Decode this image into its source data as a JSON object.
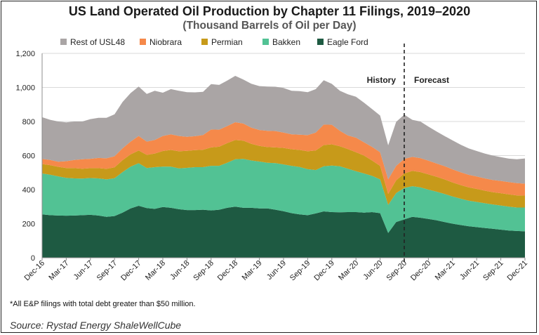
{
  "chart_data": {
    "type": "area",
    "title": "US Land Operated Oil Production by Chapter 11 Filings, 2019–2020",
    "subtitle": "(Thousand Barrels of Oil per Day)",
    "xlabel": "",
    "ylabel": "",
    "ylim": [
      0,
      1200
    ],
    "yticks": [
      0,
      200,
      400,
      600,
      800,
      1000,
      1200
    ],
    "ytick_labels": [
      "0",
      "200",
      "400",
      "600",
      "800",
      "1,000",
      "1,200"
    ],
    "stacked": true,
    "legend_position": "top",
    "x_tick_labels": [
      "Dec-16",
      "Mar-17",
      "Jun-17",
      "Sep-17",
      "Dec-17",
      "Mar-18",
      "Jun-18",
      "Sep-18",
      "Dec-18",
      "Mar-19",
      "Jun-19",
      "Sep-19",
      "Dec-19",
      "Mar-20",
      "Jun-20",
      "Sep-20",
      "Dec-20",
      "Mar-21",
      "Jun-21",
      "Sep-21",
      "Dec-21"
    ],
    "x_tick_month_index": [
      0,
      3,
      6,
      9,
      12,
      15,
      18,
      21,
      24,
      27,
      30,
      33,
      36,
      39,
      42,
      45,
      48,
      51,
      54,
      57,
      60
    ],
    "annotations": {
      "history": "History",
      "forecast": "Forecast",
      "divider_month_index": 45
    },
    "series": [
      {
        "name": "Eagle Ford",
        "color": "#1e5a42",
        "values": [
          255,
          250,
          248,
          247,
          248,
          250,
          252,
          248,
          240,
          245,
          265,
          290,
          305,
          292,
          287,
          298,
          293,
          285,
          280,
          280,
          282,
          278,
          282,
          293,
          300,
          293,
          293,
          290,
          290,
          282,
          273,
          262,
          255,
          250,
          260,
          272,
          268,
          267,
          268,
          268,
          265,
          268,
          262,
          145,
          210,
          225,
          240,
          235,
          228,
          220,
          210,
          200,
          192,
          185,
          180,
          175,
          170,
          165,
          160,
          157,
          155
        ]
      },
      {
        "name": "Bakken",
        "color": "#52c294",
        "values": [
          240,
          238,
          230,
          222,
          218,
          215,
          216,
          218,
          220,
          222,
          238,
          245,
          250,
          235,
          245,
          237,
          242,
          240,
          248,
          252,
          250,
          262,
          258,
          265,
          278,
          287,
          278,
          275,
          268,
          274,
          275,
          278,
          278,
          270,
          255,
          265,
          273,
          270,
          255,
          240,
          230,
          213,
          198,
          165,
          170,
          185,
          180,
          178,
          172,
          168,
          165,
          160,
          155,
          150,
          148,
          145,
          143,
          142,
          140,
          138,
          140
        ]
      },
      {
        "name": "Permian",
        "color": "#c79a1a",
        "values": [
          55,
          56,
          56,
          58,
          60,
          58,
          58,
          60,
          62,
          64,
          70,
          72,
          75,
          77,
          80,
          92,
          98,
          100,
          100,
          100,
          102,
          108,
          112,
          115,
          113,
          108,
          98,
          92,
          92,
          92,
          97,
          97,
          100,
          105,
          115,
          125,
          125,
          118,
          115,
          112,
          105,
          90,
          80,
          65,
          75,
          85,
          90,
          90,
          90,
          88,
          85,
          82,
          80,
          78,
          76,
          74,
          72,
          72,
          72,
          71,
          70
        ]
      },
      {
        "name": "Niobrara",
        "color": "#f5894a",
        "values": [
          30,
          30,
          30,
          40,
          48,
          55,
          55,
          60,
          62,
          65,
          70,
          75,
          85,
          78,
          80,
          88,
          92,
          90,
          82,
          82,
          87,
          105,
          100,
          100,
          105,
          100,
          95,
          93,
          95,
          96,
          90,
          88,
          90,
          95,
          105,
          120,
          115,
          90,
          80,
          85,
          78,
          80,
          80,
          85,
          85,
          85,
          82,
          82,
          80,
          78,
          78,
          77,
          75,
          74,
          73,
          72,
          72,
          72,
          72,
          72,
          70
        ]
      },
      {
        "name": "Rest of USL48",
        "color": "#aaa5a5",
        "values": [
          245,
          236,
          236,
          228,
          226,
          222,
          233,
          236,
          238,
          246,
          272,
          285,
          290,
          280,
          288,
          254,
          265,
          265,
          262,
          257,
          253,
          267,
          263,
          267,
          272,
          258,
          258,
          258,
          260,
          260,
          262,
          255,
          255,
          252,
          255,
          260,
          240,
          235,
          242,
          240,
          232,
          222,
          215,
          200,
          258,
          260,
          218,
          215,
          200,
          188,
          177,
          170,
          162,
          155,
          150,
          146,
          143,
          140,
          138,
          140,
          148
        ]
      }
    ]
  },
  "footnote": "*All E&P filings with total debt greater than $50 million.",
  "source": "Source: Rystad Energy ShaleWellCube",
  "colors": {
    "gridline": "#d9d9d9",
    "axis": "#8c8c8c",
    "divider": "#222222"
  }
}
